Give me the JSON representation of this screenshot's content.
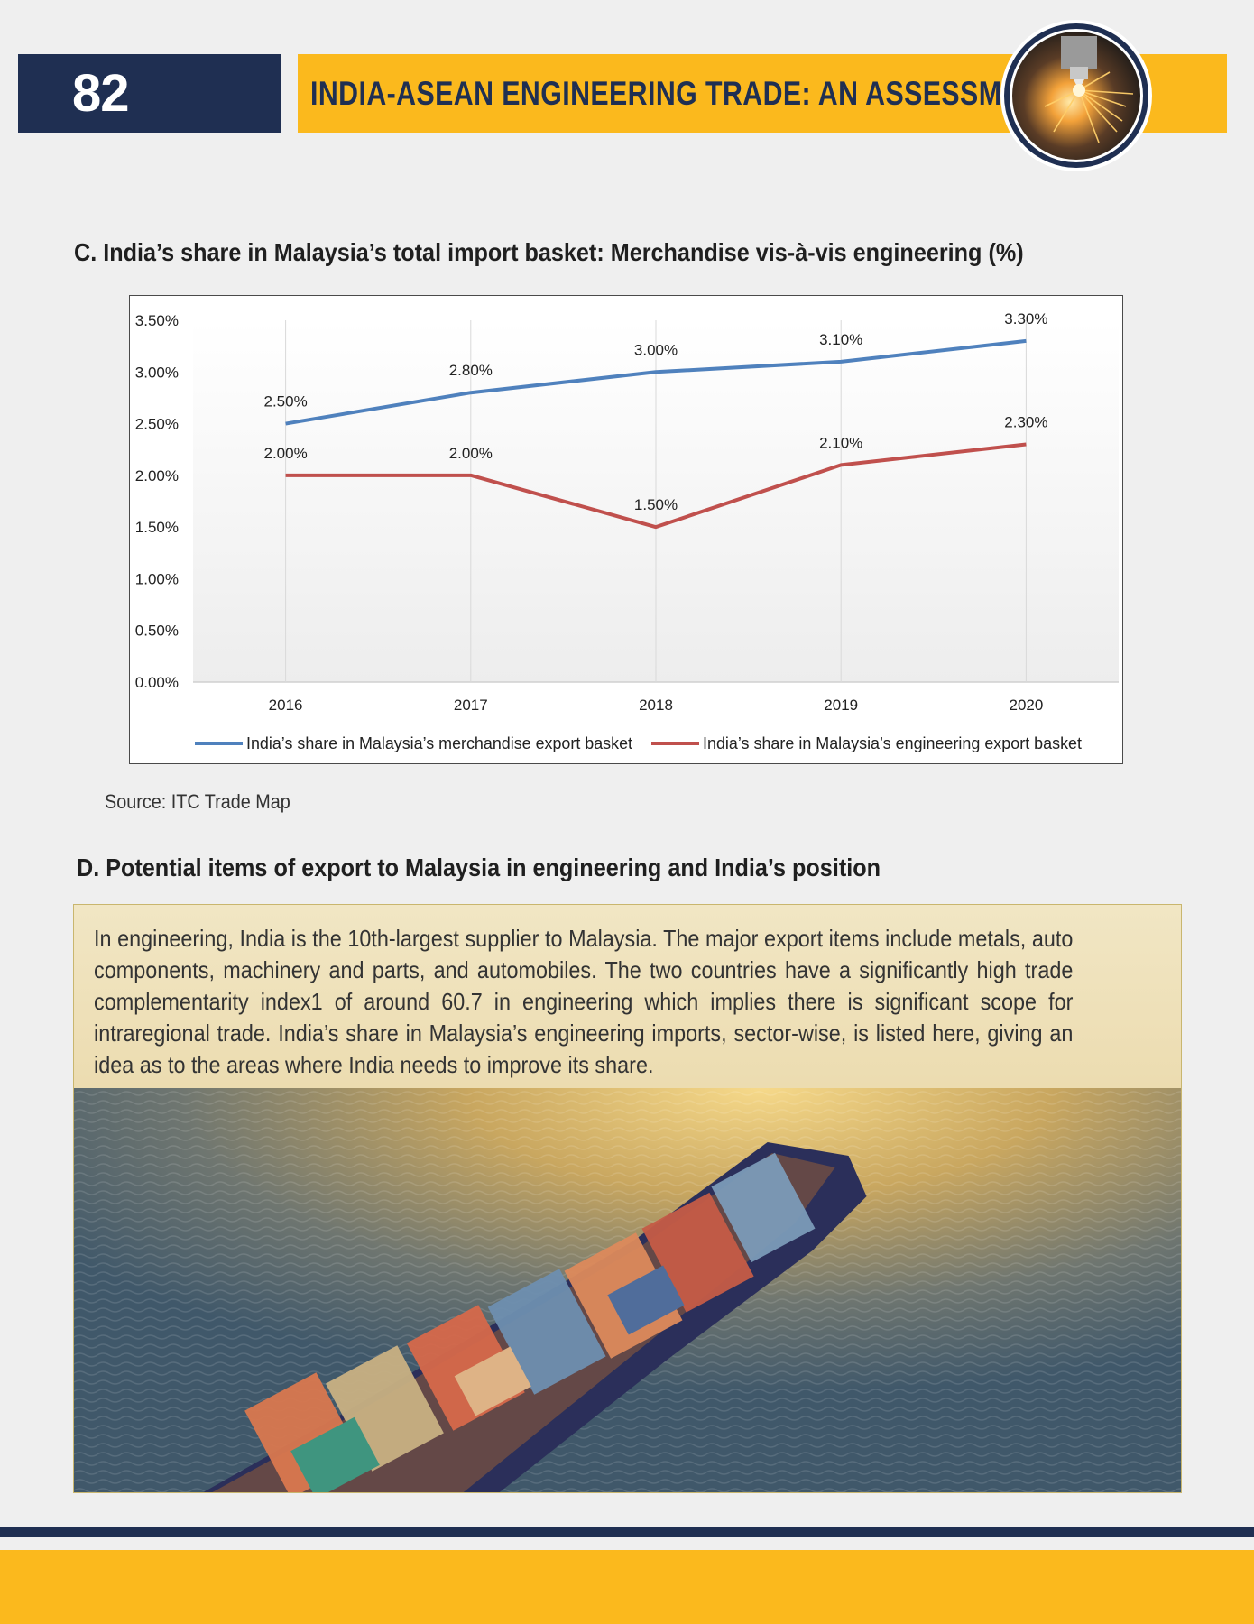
{
  "header": {
    "page_number": "82",
    "title": "INDIA-ASEAN ENGINEERING TRADE: AN ASSESSMENT",
    "medallion_icon": "laser-cutting-sparks-icon"
  },
  "section_c": {
    "title": "C. India’s share in Malaysia’s total import basket: Merchandise vis-à-vis engineering (%)",
    "source": "Source: ITC Trade Map"
  },
  "chart_data": {
    "type": "line",
    "title": "",
    "xlabel": "",
    "ylabel": "",
    "categories": [
      "2016",
      "2017",
      "2018",
      "2019",
      "2020"
    ],
    "ylim": [
      0,
      3.5
    ],
    "yticks": [
      "0.00%",
      "0.50%",
      "1.00%",
      "1.50%",
      "2.00%",
      "2.50%",
      "3.00%",
      "3.50%"
    ],
    "grid": "vertical",
    "legend": "bottom",
    "series": [
      {
        "name": "India’s share in Malaysia’s merchandise export basket",
        "color": "#4f81bd",
        "values": [
          2.5,
          2.8,
          3.0,
          3.1,
          3.3
        ],
        "labels": [
          "2.50%",
          "2.80%",
          "3.00%",
          "3.10%",
          "3.30%"
        ]
      },
      {
        "name": "India’s share in Malaysia’s engineering export basket",
        "color": "#c0504d",
        "values": [
          2.0,
          2.0,
          1.5,
          2.1,
          2.3
        ],
        "labels": [
          "2.00%",
          "2.00%",
          "1.50%",
          "2.10%",
          "2.30%"
        ]
      }
    ]
  },
  "section_d": {
    "title": "D. Potential items of export to Malaysia in engineering and India’s position",
    "body": "In engineering, India is the 10th-largest supplier to Malaysia. The major export items include metals, auto components, machinery and parts, and automobiles. The two countries have a significantly high trade complementarity index1 of around 60.7 in engineering which implies there is significant scope for intraregional trade. India’s share in Malaysia’s engineering imports, sector-wise, is listed here, giving an idea as to the areas where India needs to improve its share.",
    "photo_icon": "container-ship-photo"
  },
  "colors": {
    "navy": "#1f2f52",
    "gold": "#fbb91d"
  }
}
